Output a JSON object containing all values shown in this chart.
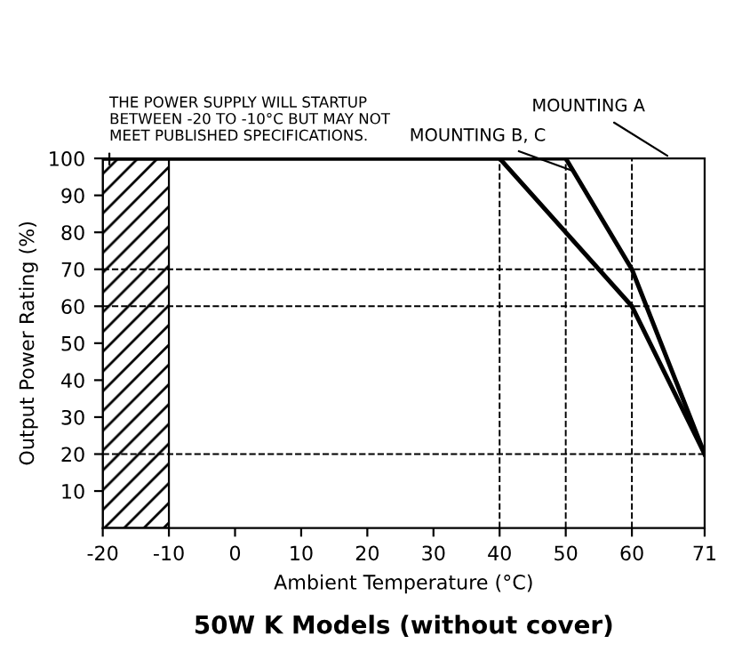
{
  "chart_data": {
    "type": "line",
    "title": "50W K Models (without cover)",
    "xlabel": "Ambient Temperature (°C)",
    "ylabel": "Output Power Rating (%)",
    "xlim": [
      -20,
      71
    ],
    "xticks": [
      -20,
      -10,
      0,
      10,
      20,
      30,
      40,
      50,
      60,
      71
    ],
    "ylim": [
      0,
      100
    ],
    "yticks": [
      10,
      20,
      30,
      40,
      50,
      60,
      70,
      80,
      90,
      100
    ],
    "series": [
      {
        "name": "MOUNTING A",
        "color": "#000000",
        "x": [
          -20,
          50,
          60,
          71
        ],
        "values": [
          100,
          100,
          70,
          20
        ]
      },
      {
        "name": "MOUNTING B, C",
        "color": "#000000",
        "x": [
          -20,
          40,
          60,
          71
        ],
        "values": [
          100,
          100,
          60,
          20
        ]
      }
    ],
    "ref_lines": [
      {
        "axis": "y",
        "value": 70,
        "line_style": "dashed"
      },
      {
        "axis": "y",
        "value": 60,
        "line_style": "dashed"
      },
      {
        "axis": "y",
        "value": 20,
        "line_style": "dashed"
      },
      {
        "axis": "x",
        "value": 40,
        "line_style": "dashed"
      },
      {
        "axis": "x",
        "value": 50,
        "line_style": "dashed"
      },
      {
        "axis": "x",
        "value": 60,
        "line_style": "dashed"
      }
    ],
    "bands": [
      {
        "axis": "x",
        "from": -20,
        "to": -10,
        "label": "THE POWER SUPPLY WILL STARTUP\nBETWEEN -20 TO -10°C BUT MAY NOT\nMEET PUBLISHED SPECIFICATIONS."
      }
    ],
    "grid": false,
    "legend": false,
    "marker": "none",
    "line_style": "solid"
  }
}
